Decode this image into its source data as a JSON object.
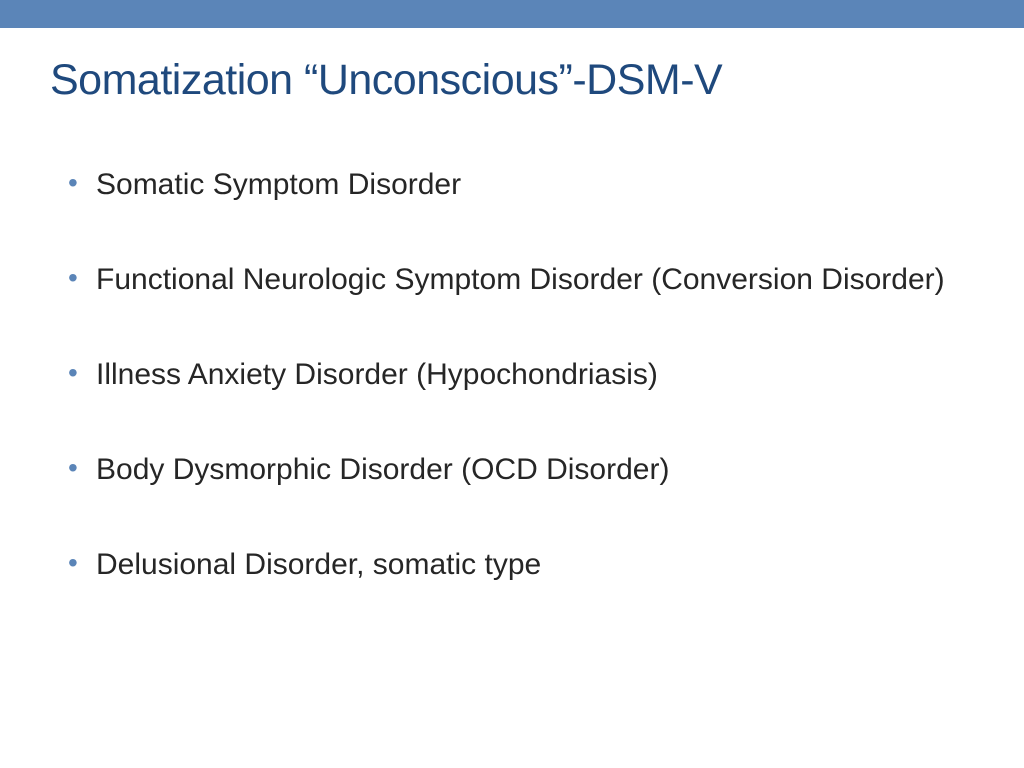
{
  "colors": {
    "top_bar": "#5b85b8",
    "title": "#1f497d",
    "body_text": "#262626",
    "bullet": "#5b85b8",
    "background": "#ffffff"
  },
  "typography": {
    "title_fontsize": 43,
    "body_fontsize": 30,
    "bullet_fontsize": 28
  },
  "slide": {
    "title": "Somatization “Unconscious”-DSM-V",
    "bullets": [
      "Somatic Symptom Disorder",
      "Functional Neurologic Symptom Disorder (Conversion Disorder)",
      "Illness Anxiety Disorder (Hypochondriasis)",
      "Body Dysmorphic Disorder (OCD Disorder)",
      "Delusional Disorder, somatic type"
    ]
  }
}
